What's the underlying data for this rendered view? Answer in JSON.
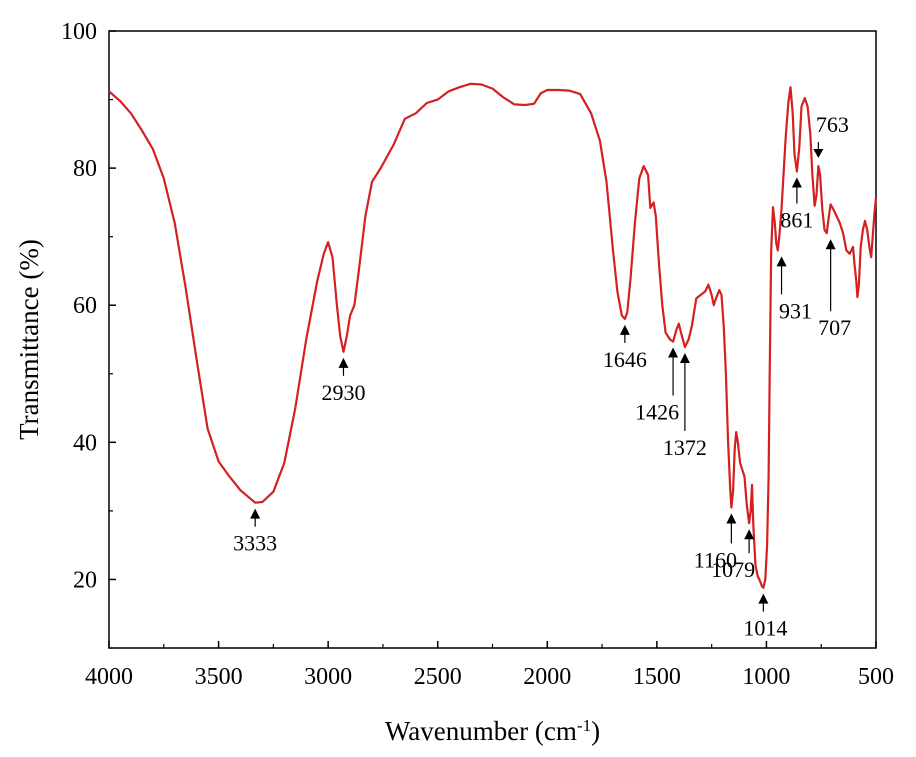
{
  "chart_data": {
    "type": "line",
    "title": "",
    "xlabel": "Wavenumber (cm",
    "xlabel_sup": "-1",
    "xlabel_tail": ")",
    "ylabel": "Transmittance (%)",
    "xlim": [
      4000,
      500
    ],
    "ylim": [
      10,
      100
    ],
    "x_reversed": true,
    "grid": false,
    "legend": "none",
    "x_ticks": [
      4000,
      3500,
      3000,
      2500,
      2000,
      1500,
      1000,
      500
    ],
    "y_ticks": [
      20,
      40,
      60,
      80,
      100
    ],
    "series": [
      {
        "color": "#d42020",
        "points": [
          [
            4000,
            91.2
          ],
          [
            3950,
            89.8
          ],
          [
            3900,
            88.0
          ],
          [
            3850,
            85.5
          ],
          [
            3800,
            82.8
          ],
          [
            3750,
            78.5
          ],
          [
            3700,
            72.0
          ],
          [
            3650,
            62.5
          ],
          [
            3600,
            52.0
          ],
          [
            3550,
            42.0
          ],
          [
            3500,
            37.2
          ],
          [
            3450,
            35.0
          ],
          [
            3400,
            33.0
          ],
          [
            3333,
            31.2
          ],
          [
            3300,
            31.3
          ],
          [
            3250,
            32.8
          ],
          [
            3200,
            37.0
          ],
          [
            3150,
            45.0
          ],
          [
            3100,
            55.0
          ],
          [
            3050,
            63.5
          ],
          [
            3020,
            67.5
          ],
          [
            3000,
            69.2
          ],
          [
            2980,
            67.0
          ],
          [
            2960,
            60.0
          ],
          [
            2945,
            55.5
          ],
          [
            2930,
            53.2
          ],
          [
            2915,
            55.5
          ],
          [
            2900,
            58.5
          ],
          [
            2880,
            60.0
          ],
          [
            2860,
            65.0
          ],
          [
            2830,
            73.0
          ],
          [
            2800,
            78.0
          ],
          [
            2760,
            80.0
          ],
          [
            2700,
            83.5
          ],
          [
            2650,
            87.2
          ],
          [
            2600,
            88.0
          ],
          [
            2550,
            89.5
          ],
          [
            2500,
            90.0
          ],
          [
            2450,
            91.2
          ],
          [
            2400,
            91.8
          ],
          [
            2350,
            92.3
          ],
          [
            2300,
            92.2
          ],
          [
            2250,
            91.6
          ],
          [
            2200,
            90.3
          ],
          [
            2150,
            89.3
          ],
          [
            2100,
            89.2
          ],
          [
            2060,
            89.4
          ],
          [
            2030,
            90.9
          ],
          [
            2000,
            91.4
          ],
          [
            1950,
            91.4
          ],
          [
            1900,
            91.3
          ],
          [
            1850,
            90.8
          ],
          [
            1800,
            88.0
          ],
          [
            1760,
            84.0
          ],
          [
            1730,
            78.0
          ],
          [
            1700,
            68.0
          ],
          [
            1680,
            62.0
          ],
          [
            1660,
            58.5
          ],
          [
            1646,
            58.0
          ],
          [
            1635,
            59.0
          ],
          [
            1620,
            64.0
          ],
          [
            1600,
            72.0
          ],
          [
            1580,
            78.5
          ],
          [
            1560,
            80.3
          ],
          [
            1540,
            79.0
          ],
          [
            1530,
            74.2
          ],
          [
            1515,
            75.0
          ],
          [
            1505,
            73.0
          ],
          [
            1490,
            66.0
          ],
          [
            1475,
            60.0
          ],
          [
            1460,
            56.0
          ],
          [
            1440,
            55.0
          ],
          [
            1426,
            54.7
          ],
          [
            1410,
            56.5
          ],
          [
            1400,
            57.3
          ],
          [
            1390,
            56.0
          ],
          [
            1372,
            53.9
          ],
          [
            1355,
            55.0
          ],
          [
            1340,
            57.0
          ],
          [
            1320,
            61.0
          ],
          [
            1300,
            61.5
          ],
          [
            1280,
            62.0
          ],
          [
            1265,
            63.0
          ],
          [
            1250,
            61.5
          ],
          [
            1240,
            60.0
          ],
          [
            1230,
            61.0
          ],
          [
            1215,
            62.2
          ],
          [
            1205,
            61.5
          ],
          [
            1195,
            57.0
          ],
          [
            1185,
            50.0
          ],
          [
            1175,
            40.0
          ],
          [
            1165,
            33.0
          ],
          [
            1160,
            30.5
          ],
          [
            1152,
            33.0
          ],
          [
            1145,
            39.0
          ],
          [
            1138,
            41.5
          ],
          [
            1130,
            40.0
          ],
          [
            1120,
            37.0
          ],
          [
            1110,
            36.0
          ],
          [
            1100,
            35.0
          ],
          [
            1090,
            31.0
          ],
          [
            1079,
            28.2
          ],
          [
            1072,
            30.0
          ],
          [
            1066,
            33.8
          ],
          [
            1060,
            28.0
          ],
          [
            1050,
            22.0
          ],
          [
            1040,
            20.5
          ],
          [
            1030,
            19.8
          ],
          [
            1020,
            19.0
          ],
          [
            1014,
            18.8
          ],
          [
            1005,
            20.0
          ],
          [
            997,
            25.0
          ],
          [
            990,
            35.0
          ],
          [
            985,
            50.0
          ],
          [
            978,
            68.0
          ],
          [
            970,
            74.3
          ],
          [
            962,
            72.0
          ],
          [
            955,
            69.0
          ],
          [
            948,
            68.0
          ],
          [
            940,
            70.5
          ],
          [
            931,
            74.0
          ],
          [
            922,
            79.0
          ],
          [
            912,
            84.5
          ],
          [
            900,
            89.5
          ],
          [
            890,
            91.8
          ],
          [
            880,
            88.0
          ],
          [
            872,
            82.0
          ],
          [
            861,
            79.5
          ],
          [
            850,
            83.0
          ],
          [
            840,
            89.0
          ],
          [
            825,
            90.2
          ],
          [
            812,
            89.0
          ],
          [
            800,
            85.0
          ],
          [
            790,
            79.0
          ],
          [
            780,
            74.5
          ],
          [
            772,
            76.0
          ],
          [
            763,
            80.3
          ],
          [
            755,
            79.0
          ],
          [
            745,
            74.0
          ],
          [
            735,
            71.0
          ],
          [
            725,
            70.5
          ],
          [
            715,
            73.0
          ],
          [
            707,
            74.7
          ],
          [
            695,
            74.0
          ],
          [
            680,
            73.0
          ],
          [
            665,
            72.0
          ],
          [
            650,
            70.5
          ],
          [
            635,
            68.0
          ],
          [
            620,
            67.5
          ],
          [
            605,
            68.5
          ],
          [
            598,
            66.0
          ],
          [
            590,
            63.5
          ],
          [
            585,
            61.2
          ],
          [
            578,
            63.0
          ],
          [
            570,
            68.5
          ],
          [
            560,
            71.0
          ],
          [
            550,
            72.3
          ],
          [
            540,
            71.0
          ],
          [
            530,
            68.5
          ],
          [
            522,
            67.0
          ],
          [
            515,
            70.0
          ],
          [
            507,
            73.5
          ],
          [
            500,
            75.7
          ]
        ]
      }
    ],
    "annotations": [
      {
        "label": "3333",
        "x": 3333,
        "y": 31.2,
        "position": "below"
      },
      {
        "label": "2930",
        "x": 2930,
        "y": 53.2,
        "position": "below"
      },
      {
        "label": "1646",
        "x": 1646,
        "y": 58.0,
        "position": "below"
      },
      {
        "label": "1426",
        "x": 1426,
        "y": 54.7,
        "position": "below-far"
      },
      {
        "label": "1372",
        "x": 1372,
        "y": 53.9,
        "position": "below-farther"
      },
      {
        "label": "1160",
        "x": 1160,
        "y": 30.5,
        "position": "below"
      },
      {
        "label": "1079",
        "x": 1079,
        "y": 28.2,
        "position": "below"
      },
      {
        "label": "1014",
        "x": 1014,
        "y": 18.8,
        "position": "below"
      },
      {
        "label": "931",
        "x": 931,
        "y": 68.0,
        "position": "below"
      },
      {
        "label": "861",
        "x": 861,
        "y": 79.5,
        "position": "below"
      },
      {
        "label": "763",
        "x": 763,
        "y": 80.3,
        "position": "above"
      },
      {
        "label": "707",
        "x": 707,
        "y": 70.5,
        "position": "below"
      }
    ]
  }
}
